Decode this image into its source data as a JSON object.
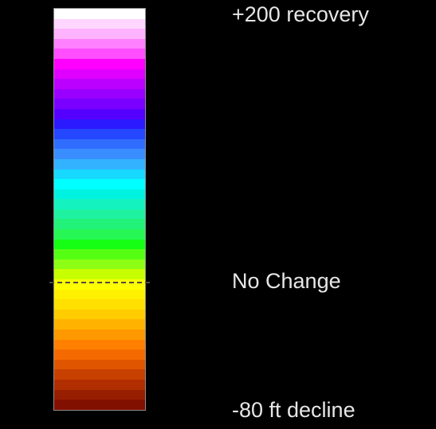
{
  "legend": {
    "top_label": "+200 recovery",
    "zero_label": "No Change",
    "bottom_label": "-80 ft decline",
    "zero_position_fraction": 0.68,
    "colors": [
      "#ffffff",
      "#ffd6ff",
      "#ffb3ff",
      "#ff80ff",
      "#ff4dff",
      "#ff00ff",
      "#e000ff",
      "#bb00ff",
      "#9900ff",
      "#7a00ff",
      "#5500ff",
      "#2b1aff",
      "#2447ff",
      "#2f6dff",
      "#3a8dff",
      "#33b3ff",
      "#17d9ff",
      "#00ffff",
      "#00f2e0",
      "#14f2c0",
      "#1ef2a0",
      "#22f27a",
      "#26f755",
      "#14ff14",
      "#55ff14",
      "#8cff14",
      "#c8ff00",
      "#ffff00",
      "#fff000",
      "#ffe000",
      "#ffcc00",
      "#ffb300",
      "#ff9900",
      "#ff8000",
      "#f56a00",
      "#e05500",
      "#c84000",
      "#b02e00",
      "#981e00",
      "#821000"
    ]
  }
}
